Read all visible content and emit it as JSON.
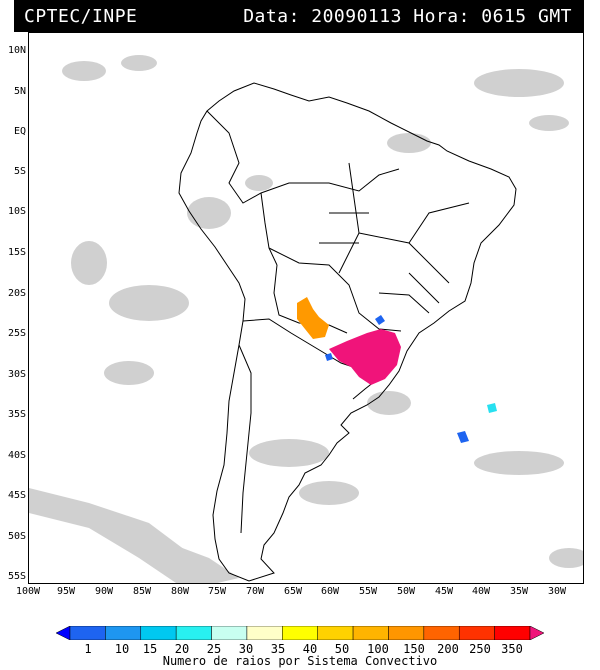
{
  "header": {
    "title": "CPTEC/INPE",
    "date_label": "Data: 20090113 Hora: 0615 GMT"
  },
  "map": {
    "lat_labels": [
      "10N",
      "5N",
      "EQ",
      "5S",
      "10S",
      "15S",
      "20S",
      "25S",
      "30S",
      "35S",
      "40S",
      "45S",
      "50S",
      "55S"
    ],
    "lat_values": [
      10,
      5,
      0,
      -5,
      -10,
      -15,
      -20,
      -25,
      -30,
      -35,
      -40,
      -45,
      -50,
      -55
    ],
    "lon_labels": [
      "100W",
      "95W",
      "90W",
      "85W",
      "80W",
      "75W",
      "70W",
      "65W",
      "60W",
      "55W",
      "50W",
      "45W",
      "40W",
      "35W",
      "30W"
    ],
    "lon_values": [
      -100,
      -95,
      -90,
      -85,
      -80,
      -75,
      -70,
      -65,
      -60,
      -55,
      -50,
      -45,
      -40,
      -35,
      -30
    ],
    "colors": {
      "cloud": "#c8c8c8",
      "coastline": "#000000",
      "lightning_high": "#f0147a",
      "lightning_mid": "#ff9900",
      "lightning_low": "#1e64f0",
      "lightning_cyan": "#28e0f0"
    }
  },
  "colorbar": {
    "ticks": [
      "1",
      "10",
      "15",
      "20",
      "25",
      "30",
      "35",
      "40",
      "50",
      "100",
      "150",
      "200",
      "250",
      "350"
    ],
    "colors": [
      "#0000ff",
      "#1e64f0",
      "#1e96f0",
      "#00c8f0",
      "#28f0f0",
      "#c8fff0",
      "#ffffc8",
      "#ffff00",
      "#ffd200",
      "#ffb400",
      "#ff9600",
      "#ff6400",
      "#ff3200",
      "#ff0000",
      "#f0147a"
    ],
    "title": "Numero de raios por Sistema Convectivo"
  }
}
